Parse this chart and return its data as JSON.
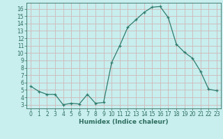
{
  "x": [
    0,
    1,
    2,
    3,
    4,
    5,
    6,
    7,
    8,
    9,
    10,
    11,
    12,
    13,
    14,
    15,
    16,
    17,
    18,
    19,
    20,
    21,
    22,
    23
  ],
  "y": [
    5.5,
    4.8,
    4.4,
    4.4,
    3.0,
    3.2,
    3.1,
    4.4,
    3.2,
    3.3,
    8.7,
    11.0,
    13.5,
    14.5,
    15.5,
    16.2,
    16.3,
    14.8,
    11.2,
    10.1,
    9.3,
    7.5,
    5.1,
    4.9
  ],
  "xlabel": "Humidex (Indice chaleur)",
  "line_color": "#2e7d6e",
  "marker": "+",
  "bg_color": "#c8eeee",
  "grid_color": "#d0b8b8",
  "tick_color": "#2e6e5e",
  "ylim": [
    2.5,
    16.8
  ],
  "xlim": [
    -0.5,
    23.5
  ],
  "yticks": [
    3,
    4,
    5,
    6,
    7,
    8,
    9,
    10,
    11,
    12,
    13,
    14,
    15,
    16
  ],
  "xticks": [
    0,
    1,
    2,
    3,
    4,
    5,
    6,
    7,
    8,
    9,
    10,
    11,
    12,
    13,
    14,
    15,
    16,
    17,
    18,
    19,
    20,
    21,
    22,
    23
  ],
  "xlabel_fontsize": 6.5,
  "tick_fontsize": 5.5
}
